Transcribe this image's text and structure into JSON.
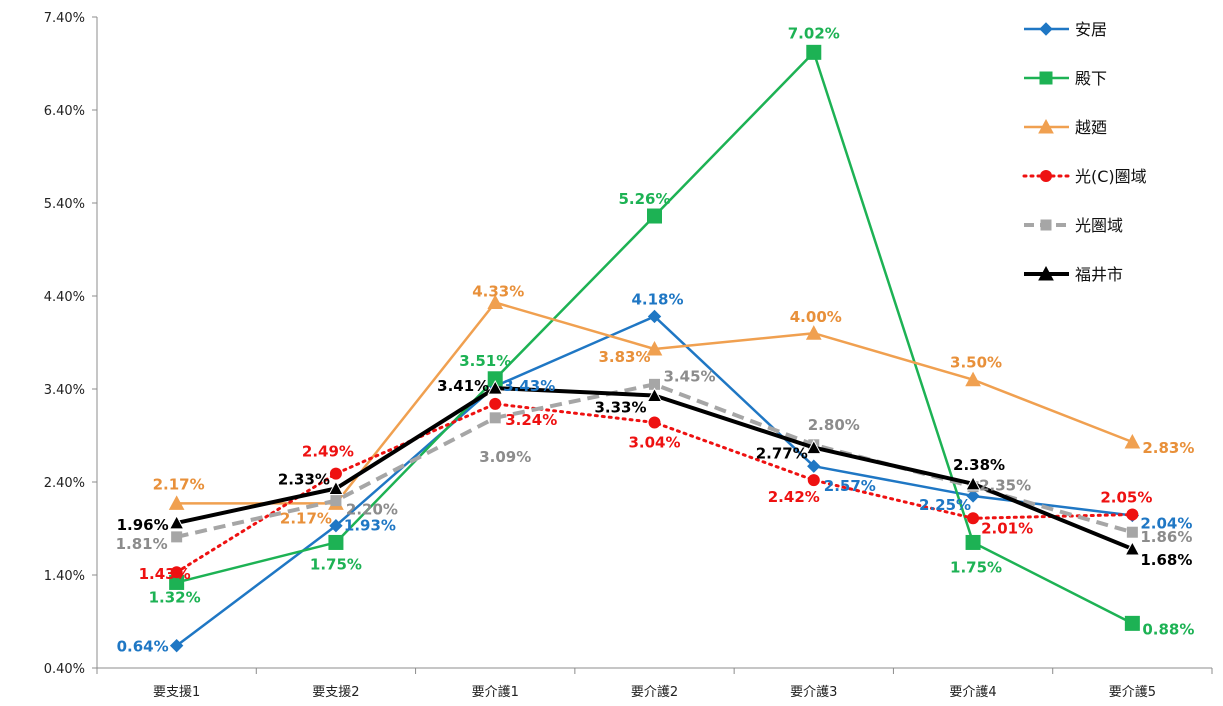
{
  "chart_data": {
    "type": "line",
    "categories": [
      "要支援1",
      "要支援2",
      "要介護1",
      "要介護2",
      "要介護3",
      "要介護4",
      "要介護5"
    ],
    "ylim": [
      0.4,
      7.4
    ],
    "y_ticks": [
      "0.40%",
      "1.40%",
      "2.40%",
      "3.40%",
      "4.40%",
      "5.40%",
      "6.40%",
      "7.40%"
    ],
    "grid": false,
    "legend_position": "top-right",
    "series": [
      {
        "name": "安居",
        "values": [
          0.64,
          1.93,
          3.43,
          4.18,
          2.57,
          2.25,
          2.04
        ],
        "labels": [
          "0.64%",
          "1.93%",
          "3.43%",
          "4.18%",
          "2.57%",
          "2.25%",
          "2.04%"
        ],
        "color": "#1f77c4",
        "marker": "diamond",
        "dash": "solid"
      },
      {
        "name": "殿下",
        "values": [
          1.32,
          1.75,
          3.51,
          5.26,
          7.02,
          1.75,
          0.88
        ],
        "labels": [
          "1.32%",
          "1.75%",
          "3.51%",
          "5.26%",
          "7.02%",
          "1.75%",
          "0.88%"
        ],
        "color": "#1db254",
        "marker": "square",
        "dash": "solid"
      },
      {
        "name": "越廼",
        "values": [
          2.17,
          2.17,
          4.33,
          3.83,
          4.0,
          3.5,
          2.83
        ],
        "labels": [
          "2.17%",
          "2.17%",
          "4.33%",
          "3.83%",
          "4.00%",
          "3.50%",
          "2.83%"
        ],
        "color": "#f0a050",
        "marker": "triangle",
        "dash": "solid"
      },
      {
        "name": "光(C)圏域",
        "values": [
          1.43,
          2.49,
          3.24,
          3.04,
          2.42,
          2.01,
          2.05
        ],
        "labels": [
          "1.43%",
          "2.49%",
          "3.24%",
          "3.04%",
          "2.42%",
          "2.01%",
          "2.05%"
        ],
        "color": "#ee1111",
        "marker": "circle",
        "dash": "dotted"
      },
      {
        "name": "光圏域",
        "values": [
          1.81,
          2.2,
          3.09,
          3.45,
          2.8,
          2.35,
          1.86
        ],
        "labels": [
          "1.81%",
          "2.20%",
          "3.09%",
          "3.45%",
          "2.80%",
          "2.35%",
          "1.86%"
        ],
        "color": "#a6a6a6",
        "marker": "square",
        "dash": "dashed"
      },
      {
        "name": "福井市",
        "values": [
          1.96,
          2.33,
          3.41,
          3.33,
          2.77,
          2.38,
          1.68
        ],
        "labels": [
          "1.96%",
          "2.33%",
          "3.41%",
          "3.33%",
          "2.77%",
          "2.38%",
          "1.68%"
        ],
        "color": "#000000",
        "marker": "triangle",
        "dash": "solid"
      }
    ]
  }
}
